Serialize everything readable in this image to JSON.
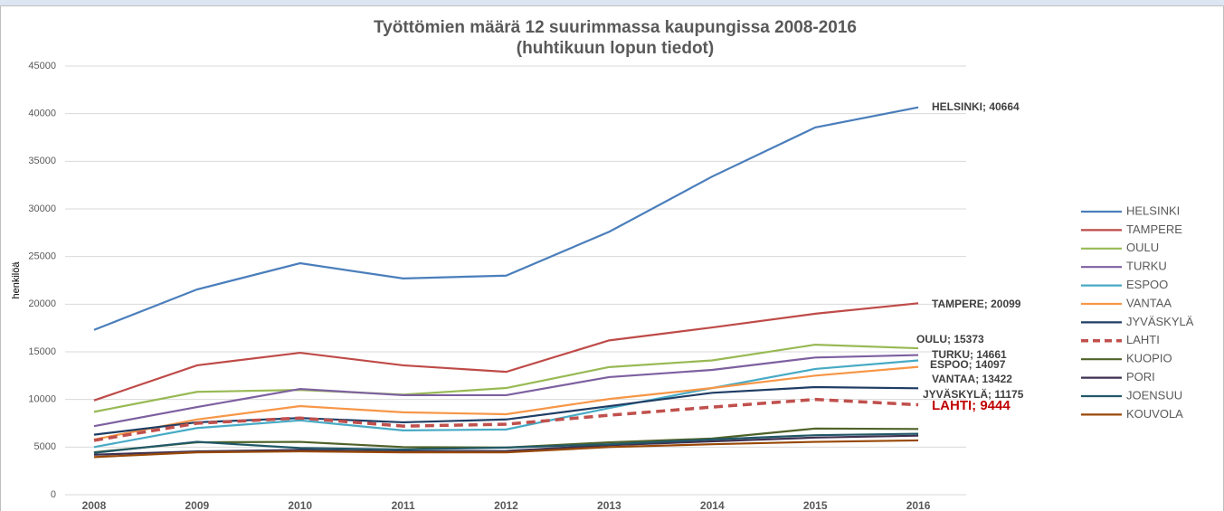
{
  "chart_data": {
    "type": "line",
    "title": [
      "Työttömien määrä 12 suurimmassa kaupungissa 2008-2016",
      "(huhtikuun lopun tiedot)"
    ],
    "y_label": "henkilöä",
    "categories": [
      "2008",
      "2009",
      "2010",
      "2011",
      "2012",
      "2013",
      "2014",
      "2015",
      "2016"
    ],
    "ylim": [
      0,
      45000
    ],
    "yticks": [
      0,
      5000,
      10000,
      15000,
      20000,
      25000,
      30000,
      35000,
      40000,
      45000
    ],
    "grid": true,
    "legend": "right",
    "series": [
      {
        "name": "HELSINKI",
        "color": "#4a7ebb",
        "values": [
          17300,
          21550,
          24300,
          22700,
          23000,
          27600,
          33400,
          38550,
          40664
        ],
        "value_labels": [
          null,
          null,
          null,
          null,
          null,
          null,
          null,
          null,
          "HELSINKI; 40664"
        ]
      },
      {
        "name": "TAMPERE",
        "color": "#be4b48",
        "values": [
          9900,
          13580,
          14900,
          13580,
          12900,
          16200,
          17560,
          19000,
          20099
        ],
        "value_labels": [
          null,
          null,
          null,
          null,
          null,
          null,
          null,
          null,
          "TAMPERE; 20099"
        ]
      },
      {
        "name": "OULU",
        "color": "#98b954",
        "values": [
          8700,
          10800,
          11000,
          10500,
          11200,
          13400,
          14100,
          15750,
          15373
        ],
        "value_labels": [
          null,
          null,
          null,
          null,
          null,
          null,
          null,
          null,
          "OULU; 15373"
        ]
      },
      {
        "name": "TURKU",
        "color": "#7d60a0",
        "values": [
          7200,
          9200,
          11100,
          10450,
          10450,
          12350,
          13100,
          14400,
          14661
        ],
        "value_labels": [
          null,
          null,
          null,
          null,
          null,
          null,
          null,
          null,
          "TURKU; 14661"
        ]
      },
      {
        "name": "ESPOO",
        "color": "#46aac5",
        "values": [
          5000,
          7000,
          7800,
          6750,
          6850,
          9100,
          11200,
          13200,
          14097
        ],
        "value_labels": [
          null,
          null,
          null,
          null,
          null,
          null,
          null,
          null,
          "ESPOO; 14097"
        ]
      },
      {
        "name": "VANTAA",
        "color": "#f79646",
        "values": [
          5800,
          7900,
          9300,
          8650,
          8450,
          10050,
          11200,
          12500,
          13422
        ],
        "value_labels": [
          null,
          null,
          null,
          null,
          null,
          null,
          null,
          null,
          "VANTAA; 13422"
        ]
      },
      {
        "name": "JYVÄSKYLÄ",
        "color": "#1f3d64",
        "values": [
          6300,
          7600,
          8050,
          7600,
          7900,
          9300,
          10700,
          11300,
          11175
        ],
        "value_labels": [
          null,
          null,
          null,
          null,
          null,
          null,
          null,
          null,
          "JYVÄSKYLÄ; 11175"
        ]
      },
      {
        "name": "LAHTI",
        "color": "#c0504d",
        "dashed": true,
        "values": [
          5700,
          7500,
          8050,
          7200,
          7400,
          8350,
          9200,
          10000,
          9444
        ],
        "value_labels": [
          null,
          null,
          null,
          null,
          null,
          null,
          null,
          null,
          "LAHTI; 9444"
        ]
      },
      {
        "name": "KUOPIO",
        "color": "#4f6228",
        "values": [
          4450,
          5500,
          5550,
          5000,
          4950,
          5500,
          5900,
          6950,
          6900
        ]
      },
      {
        "name": "PORI",
        "color": "#3f3151",
        "values": [
          4200,
          4550,
          4700,
          4550,
          4600,
          5200,
          5600,
          6000,
          6200
        ]
      },
      {
        "name": "JOENSUU",
        "color": "#215968",
        "values": [
          4400,
          5550,
          4900,
          4750,
          4950,
          5300,
          5800,
          6250,
          6400
        ]
      },
      {
        "name": "KOUVOLA",
        "color": "#984807",
        "values": [
          3950,
          4450,
          4550,
          4450,
          4450,
          5000,
          5300,
          5550,
          5700
        ]
      }
    ]
  }
}
